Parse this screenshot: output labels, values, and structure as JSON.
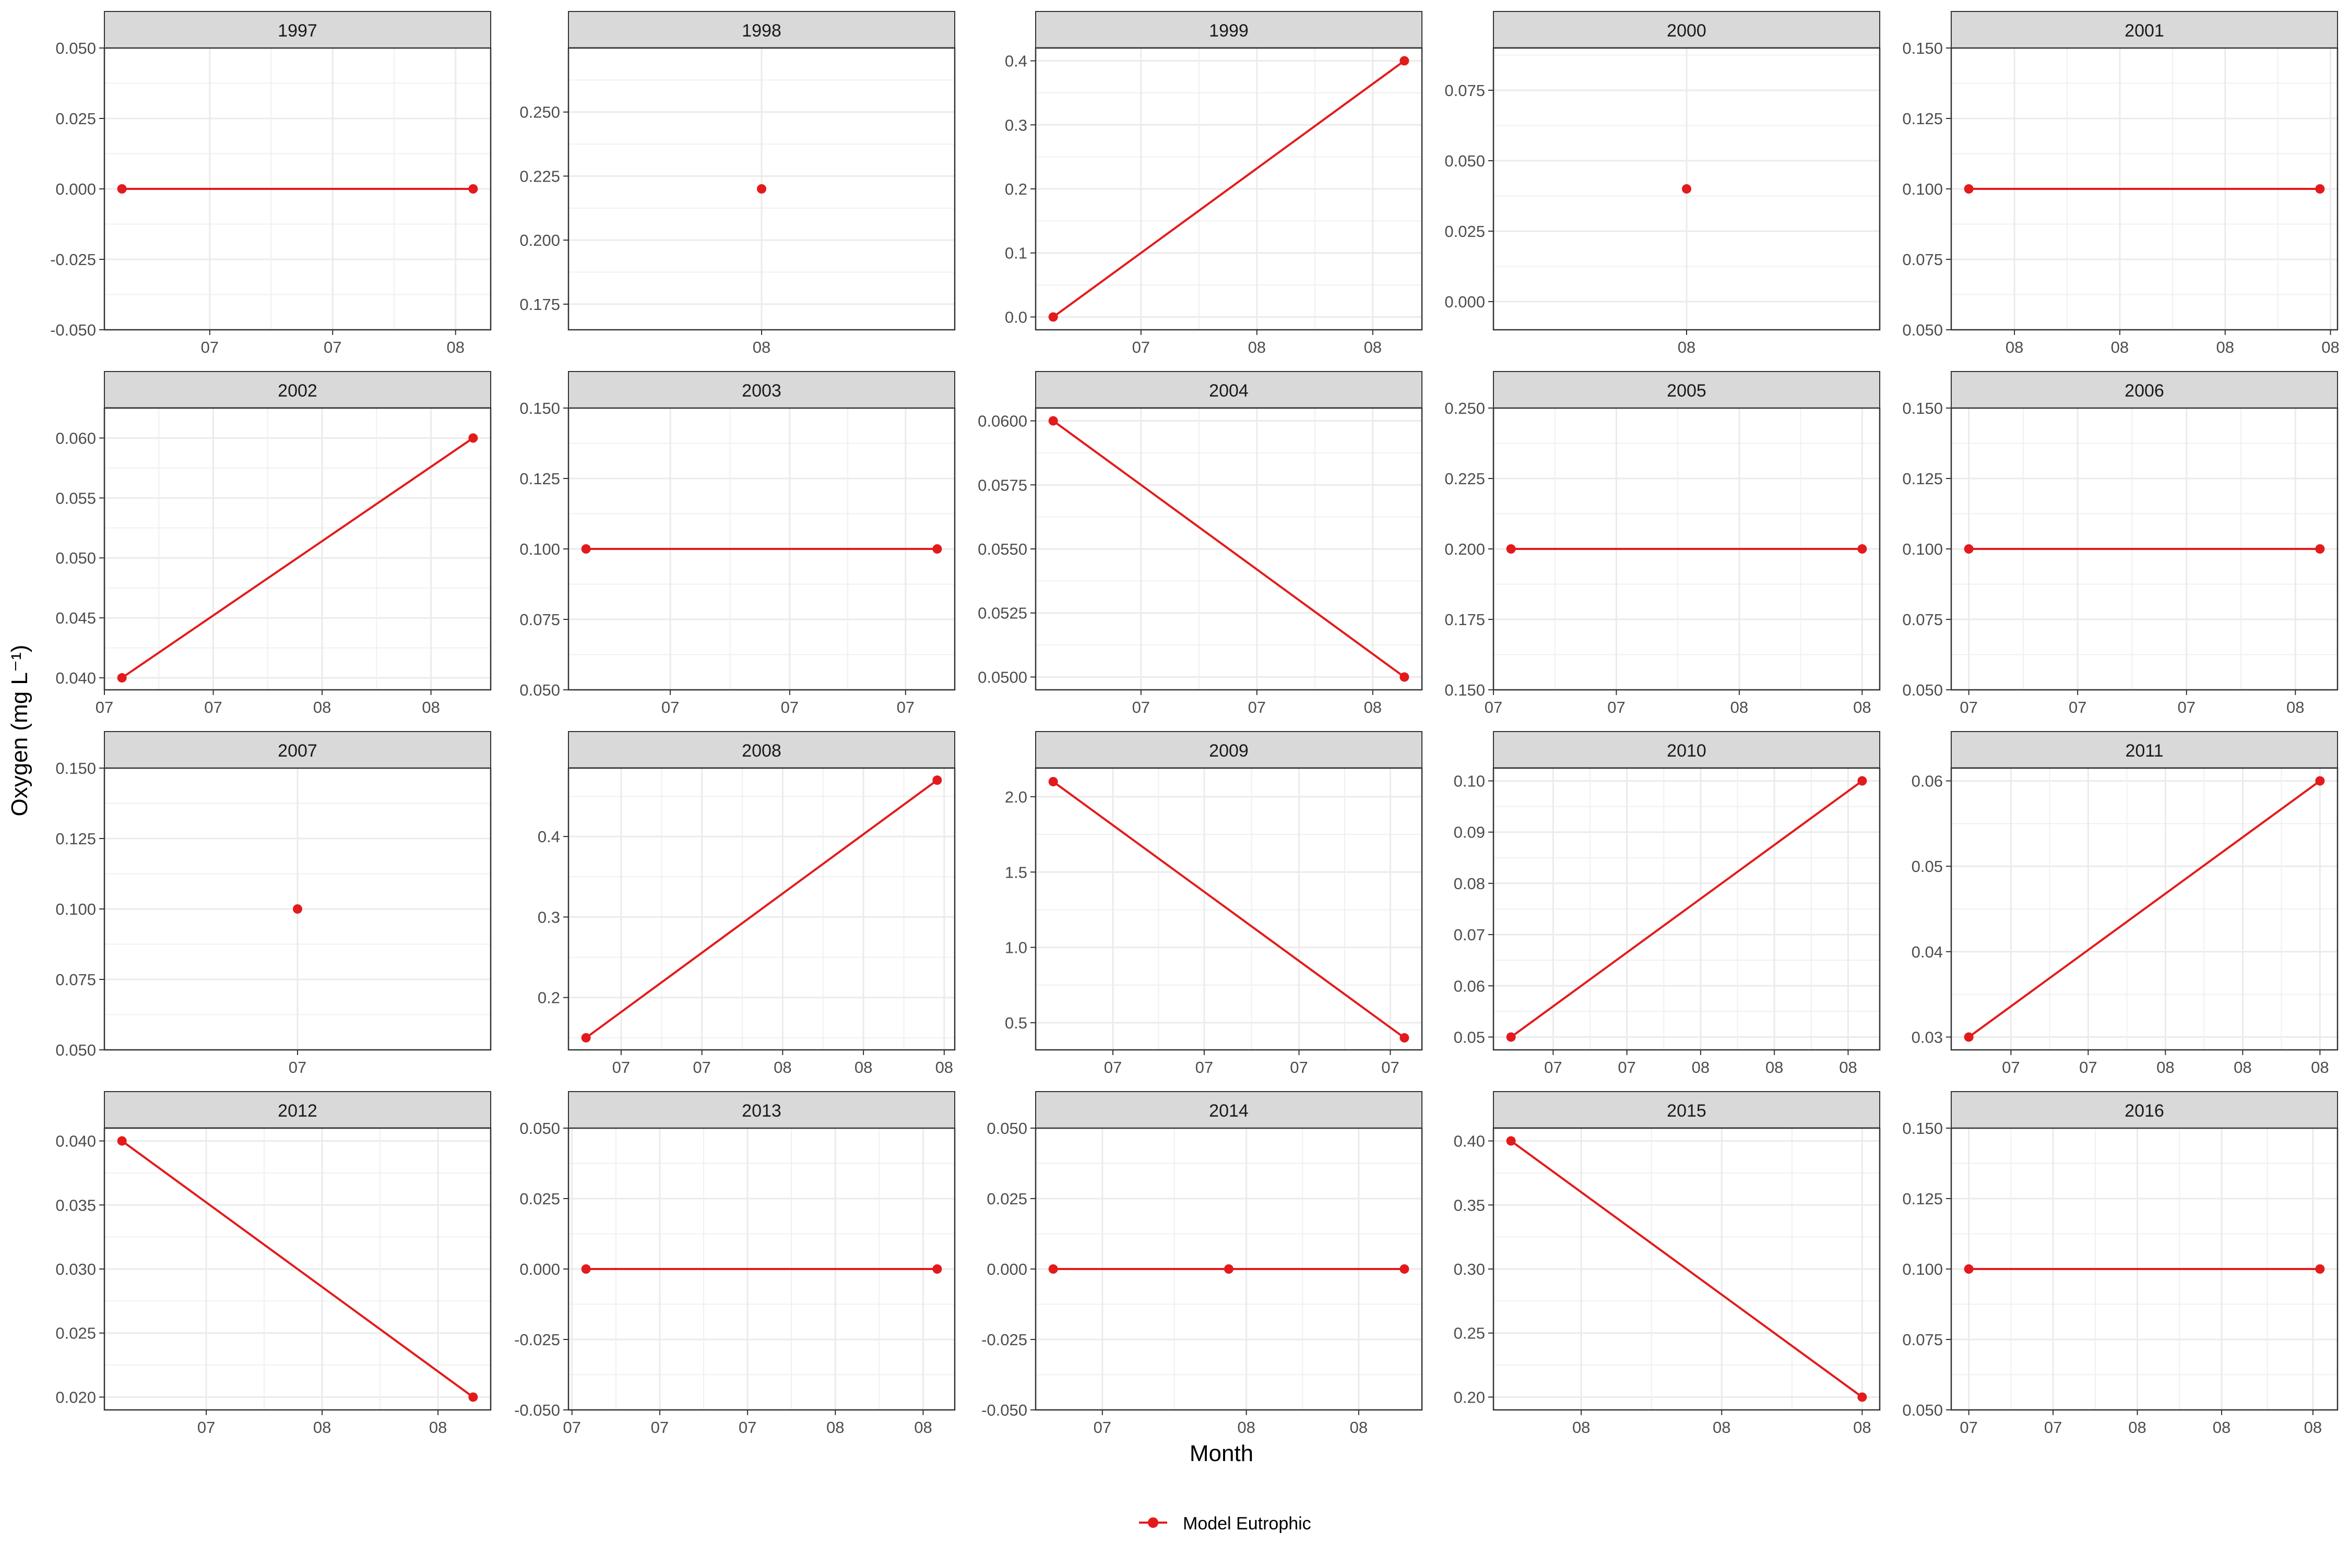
{
  "figure": {
    "xlabel": "Month",
    "ylabel": "Oxygen (mg L⁻¹)",
    "legend_label": "Model Eutrophic",
    "series_color": "#e31a1c"
  },
  "chart_data": {
    "type": "line",
    "layout": "facet-grid-4x5",
    "grid": true,
    "legend_placement": "bottom",
    "xlabel": "Month",
    "ylabel": "Oxygen (mg L⁻¹)",
    "series_name": "Model Eutrophic",
    "panels": [
      {
        "title": "1997",
        "xlim": [
          -0.05,
          1.05
        ],
        "ylim": [
          -0.05,
          0.05
        ],
        "yticks": [
          "-0.050",
          "-0.025",
          "0.000",
          "0.025",
          "0.050"
        ],
        "xticks": [
          {
            "x": 0.25,
            "label": "07"
          },
          {
            "x": 0.6,
            "label": "07"
          },
          {
            "x": 0.95,
            "label": "08"
          }
        ],
        "points": [
          {
            "x": 0,
            "y": 0
          },
          {
            "x": 1,
            "y": 0
          }
        ]
      },
      {
        "title": "1998",
        "xlim": [
          -1,
          1
        ],
        "ylim": [
          0.165,
          0.275
        ],
        "yticks": [
          "0.175",
          "0.200",
          "0.225",
          "0.250"
        ],
        "xticks": [
          {
            "x": 0,
            "label": "08"
          }
        ],
        "points": [
          {
            "x": 0,
            "y": 0.22
          }
        ]
      },
      {
        "title": "1999",
        "xlim": [
          -0.05,
          1.05
        ],
        "ylim": [
          -0.02,
          0.42
        ],
        "yticks": [
          "0.0",
          "0.1",
          "0.2",
          "0.3",
          "0.4"
        ],
        "xticks": [
          {
            "x": 0.25,
            "label": "07"
          },
          {
            "x": 0.58,
            "label": "08"
          },
          {
            "x": 0.91,
            "label": "08"
          }
        ],
        "points": [
          {
            "x": 0,
            "y": 0
          },
          {
            "x": 1,
            "y": 0.4
          }
        ]
      },
      {
        "title": "2000",
        "xlim": [
          -1,
          1
        ],
        "ylim": [
          -0.01,
          0.09
        ],
        "yticks": [
          "0.000",
          "0.025",
          "0.050",
          "0.075"
        ],
        "xticks": [
          {
            "x": 0,
            "label": "08"
          }
        ],
        "points": [
          {
            "x": 0,
            "y": 0.04
          }
        ]
      },
      {
        "title": "2001",
        "xlim": [
          -0.05,
          1.05
        ],
        "ylim": [
          0.05,
          0.15
        ],
        "yticks": [
          "0.050",
          "0.075",
          "0.100",
          "0.125",
          "0.150"
        ],
        "xticks": [
          {
            "x": 0.13,
            "label": "08"
          },
          {
            "x": 0.43,
            "label": "08"
          },
          {
            "x": 0.73,
            "label": "08"
          },
          {
            "x": 1.03,
            "label": "08"
          }
        ],
        "points": [
          {
            "x": 0,
            "y": 0.1
          },
          {
            "x": 1,
            "y": 0.1
          }
        ]
      },
      {
        "title": "2002",
        "xlim": [
          -0.05,
          1.05
        ],
        "ylim": [
          0.039,
          0.0625
        ],
        "yticks": [
          "0.040",
          "0.045",
          "0.050",
          "0.055",
          "0.060"
        ],
        "xticks": [
          {
            "x": -0.05,
            "label": "07"
          },
          {
            "x": 0.26,
            "label": "07"
          },
          {
            "x": 0.57,
            "label": "08"
          },
          {
            "x": 0.88,
            "label": "08"
          }
        ],
        "points": [
          {
            "x": 0,
            "y": 0.04
          },
          {
            "x": 1,
            "y": 0.06
          }
        ]
      },
      {
        "title": "2003",
        "xlim": [
          -0.05,
          1.05
        ],
        "ylim": [
          0.05,
          0.15
        ],
        "yticks": [
          "0.050",
          "0.075",
          "0.100",
          "0.125",
          "0.150"
        ],
        "xticks": [
          {
            "x": 0.24,
            "label": "07"
          },
          {
            "x": 0.58,
            "label": "07"
          },
          {
            "x": 0.91,
            "label": "07"
          }
        ],
        "points": [
          {
            "x": 0,
            "y": 0.1
          },
          {
            "x": 1,
            "y": 0.1
          }
        ]
      },
      {
        "title": "2004",
        "xlim": [
          -0.05,
          1.05
        ],
        "ylim": [
          0.0495,
          0.0605
        ],
        "yticks": [
          "0.0500",
          "0.0525",
          "0.0550",
          "0.0575",
          "0.0600"
        ],
        "xticks": [
          {
            "x": 0.25,
            "label": "07"
          },
          {
            "x": 0.58,
            "label": "07"
          },
          {
            "x": 0.91,
            "label": "08"
          }
        ],
        "points": [
          {
            "x": 0,
            "y": 0.06
          },
          {
            "x": 1,
            "y": 0.05
          }
        ]
      },
      {
        "title": "2005",
        "xlim": [
          -0.05,
          1.05
        ],
        "ylim": [
          0.15,
          0.25
        ],
        "yticks": [
          "0.150",
          "0.175",
          "0.200",
          "0.225",
          "0.250"
        ],
        "xticks": [
          {
            "x": -0.05,
            "label": "07"
          },
          {
            "x": 0.3,
            "label": "07"
          },
          {
            "x": 0.65,
            "label": "08"
          },
          {
            "x": 1.0,
            "label": "08"
          }
        ],
        "points": [
          {
            "x": 0,
            "y": 0.2
          },
          {
            "x": 1,
            "y": 0.2
          }
        ]
      },
      {
        "title": "2006",
        "xlim": [
          -0.05,
          1.05
        ],
        "ylim": [
          0.05,
          0.15
        ],
        "yticks": [
          "0.050",
          "0.075",
          "0.100",
          "0.125",
          "0.150"
        ],
        "xticks": [
          {
            "x": 0,
            "label": "07"
          },
          {
            "x": 0.31,
            "label": "07"
          },
          {
            "x": 0.62,
            "label": "07"
          },
          {
            "x": 0.93,
            "label": "08"
          }
        ],
        "points": [
          {
            "x": 0,
            "y": 0.1
          },
          {
            "x": 1,
            "y": 0.1
          }
        ]
      },
      {
        "title": "2007",
        "xlim": [
          -1,
          1
        ],
        "ylim": [
          0.05,
          0.15
        ],
        "yticks": [
          "0.050",
          "0.075",
          "0.100",
          "0.125",
          "0.150"
        ],
        "xticks": [
          {
            "x": 0,
            "label": "07"
          }
        ],
        "points": [
          {
            "x": 0,
            "y": 0.1
          }
        ]
      },
      {
        "title": "2008",
        "xlim": [
          -0.05,
          1.05
        ],
        "ylim": [
          0.135,
          0.485
        ],
        "yticks": [
          "0.2",
          "0.3",
          "0.4"
        ],
        "xticks": [
          {
            "x": 0.1,
            "label": "07"
          },
          {
            "x": 0.33,
            "label": "07"
          },
          {
            "x": 0.56,
            "label": "08"
          },
          {
            "x": 0.79,
            "label": "08"
          },
          {
            "x": 1.02,
            "label": "08"
          }
        ],
        "points": [
          {
            "x": 0,
            "y": 0.15
          },
          {
            "x": 1,
            "y": 0.47
          }
        ]
      },
      {
        "title": "2009",
        "xlim": [
          -0.05,
          1.05
        ],
        "ylim": [
          0.32,
          2.19
        ],
        "yticks": [
          "0.5",
          "1.0",
          "1.5",
          "2.0"
        ],
        "xticks": [
          {
            "x": 0.17,
            "label": "07"
          },
          {
            "x": 0.43,
            "label": "07"
          },
          {
            "x": 0.7,
            "label": "07"
          },
          {
            "x": 0.96,
            "label": "07"
          }
        ],
        "points": [
          {
            "x": 0,
            "y": 2.1
          },
          {
            "x": 1,
            "y": 0.4
          }
        ]
      },
      {
        "title": "2010",
        "xlim": [
          -0.05,
          1.05
        ],
        "ylim": [
          0.0475,
          0.1025
        ],
        "yticks": [
          "0.05",
          "0.06",
          "0.07",
          "0.08",
          "0.09",
          "0.10"
        ],
        "xticks": [
          {
            "x": 0.12,
            "label": "07"
          },
          {
            "x": 0.33,
            "label": "07"
          },
          {
            "x": 0.54,
            "label": "08"
          },
          {
            "x": 0.75,
            "label": "08"
          },
          {
            "x": 0.96,
            "label": "08"
          }
        ],
        "points": [
          {
            "x": 0,
            "y": 0.05
          },
          {
            "x": 1,
            "y": 0.1
          }
        ]
      },
      {
        "title": "2011",
        "xlim": [
          -0.05,
          1.05
        ],
        "ylim": [
          0.0285,
          0.0615
        ],
        "yticks": [
          "0.03",
          "0.04",
          "0.05",
          "0.06"
        ],
        "xticks": [
          {
            "x": 0.12,
            "label": "07"
          },
          {
            "x": 0.34,
            "label": "07"
          },
          {
            "x": 0.56,
            "label": "08"
          },
          {
            "x": 0.78,
            "label": "08"
          },
          {
            "x": 1.0,
            "label": "08"
          }
        ],
        "points": [
          {
            "x": 0,
            "y": 0.03
          },
          {
            "x": 1,
            "y": 0.06
          }
        ]
      },
      {
        "title": "2012",
        "xlim": [
          -0.05,
          1.05
        ],
        "ylim": [
          0.019,
          0.041
        ],
        "yticks": [
          "0.020",
          "0.025",
          "0.030",
          "0.035",
          "0.040"
        ],
        "xticks": [
          {
            "x": 0.24,
            "label": "07"
          },
          {
            "x": 0.57,
            "label": "08"
          },
          {
            "x": 0.9,
            "label": "08"
          }
        ],
        "points": [
          {
            "x": 0,
            "y": 0.04
          },
          {
            "x": 1,
            "y": 0.02
          }
        ]
      },
      {
        "title": "2013",
        "xlim": [
          -0.05,
          1.05
        ],
        "ylim": [
          -0.05,
          0.05
        ],
        "yticks": [
          "-0.050",
          "-0.025",
          "0.000",
          "0.025",
          "0.050"
        ],
        "xticks": [
          {
            "x": -0.04,
            "label": "07"
          },
          {
            "x": 0.21,
            "label": "07"
          },
          {
            "x": 0.46,
            "label": "07"
          },
          {
            "x": 0.71,
            "label": "08"
          },
          {
            "x": 0.96,
            "label": "08"
          }
        ],
        "points": [
          {
            "x": 0,
            "y": 0
          },
          {
            "x": 1,
            "y": 0
          }
        ]
      },
      {
        "title": "2014",
        "xlim": [
          -0.05,
          1.05
        ],
        "ylim": [
          -0.05,
          0.05
        ],
        "yticks": [
          "-0.050",
          "-0.025",
          "0.000",
          "0.025",
          "0.050"
        ],
        "xticks": [
          {
            "x": 0.14,
            "label": "07"
          },
          {
            "x": 0.55,
            "label": "08"
          },
          {
            "x": 0.87,
            "label": "08"
          }
        ],
        "points": [
          {
            "x": 0,
            "y": 0
          },
          {
            "x": 0.5,
            "y": 0
          },
          {
            "x": 1,
            "y": 0
          }
        ]
      },
      {
        "title": "2015",
        "xlim": [
          -0.05,
          1.05
        ],
        "ylim": [
          0.19,
          0.41
        ],
        "yticks": [
          "0.20",
          "0.25",
          "0.30",
          "0.35",
          "0.40"
        ],
        "xticks": [
          {
            "x": 0.2,
            "label": "08"
          },
          {
            "x": 0.6,
            "label": "08"
          },
          {
            "x": 1.0,
            "label": "08"
          }
        ],
        "points": [
          {
            "x": 0,
            "y": 0.4
          },
          {
            "x": 1,
            "y": 0.2
          }
        ]
      },
      {
        "title": "2016",
        "xlim": [
          -0.05,
          1.05
        ],
        "ylim": [
          0.05,
          0.15
        ],
        "yticks": [
          "0.050",
          "0.075",
          "0.100",
          "0.125",
          "0.150"
        ],
        "xticks": [
          {
            "x": 0,
            "label": "07"
          },
          {
            "x": 0.24,
            "label": "07"
          },
          {
            "x": 0.48,
            "label": "08"
          },
          {
            "x": 0.72,
            "label": "08"
          },
          {
            "x": 0.98,
            "label": "08"
          }
        ],
        "points": [
          {
            "x": 0,
            "y": 0.1
          },
          {
            "x": 1,
            "y": 0.1
          }
        ]
      }
    ]
  }
}
